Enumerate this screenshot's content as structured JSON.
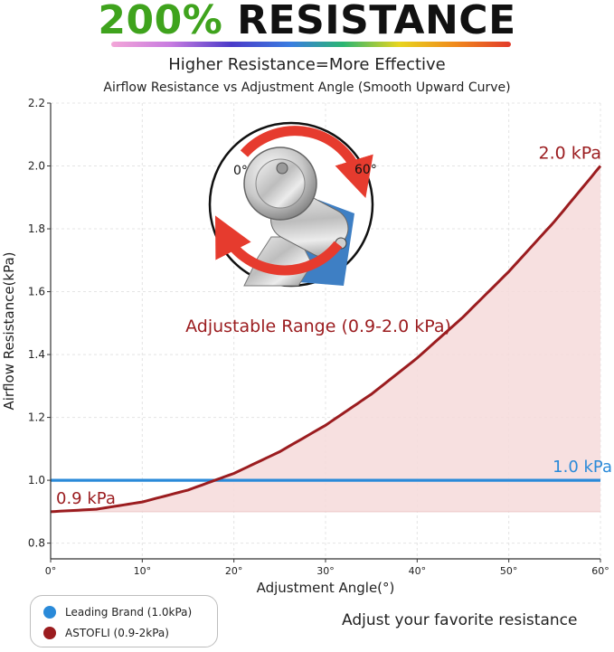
{
  "banner": {
    "percent": "200%",
    "word": "RESISTANCE"
  },
  "subtitle": "Higher Resistance=More Effective",
  "chart_title": "Airflow Resistance vs Adjustment Angle (Smooth Upward Curve)",
  "tagline": "Adjust your favorite resistance",
  "knob": {
    "label_min": "0°",
    "label_max": "60°"
  },
  "colors": {
    "red": "#9b1c1f",
    "blue": "#2a8ad9",
    "fill": "#f6dada",
    "green": "#3fa31d"
  },
  "chart_data": {
    "type": "line",
    "title": "Airflow Resistance vs Adjustment Angle (Smooth Upward Curve)",
    "xlabel": "Adjustment Angle(°)",
    "ylabel": "Airflow Resistance(kPa)",
    "xlim": [
      0,
      60
    ],
    "ylim": [
      0.75,
      2.2
    ],
    "xticks": [
      0,
      10,
      20,
      30,
      40,
      50,
      60
    ],
    "xtick_labels": [
      "0°",
      "10°",
      "20°",
      "30°",
      "40°",
      "50°",
      "60°"
    ],
    "yticks": [
      0.8,
      1.0,
      1.2,
      1.4,
      1.6,
      1.8,
      2.0,
      2.2
    ],
    "ytick_labels": [
      "0.8",
      "1.0",
      "1.2",
      "1.4",
      "1.6",
      "1.8",
      "2.0",
      "2.2"
    ],
    "grid": true,
    "legend_position": "bottom-left",
    "series": [
      {
        "name": "Leading Brand (1.0kPa)",
        "x": [
          0,
          60
        ],
        "y": [
          1.0,
          1.0
        ],
        "color": "#2a8ad9"
      },
      {
        "name": "ASTOFLI (0.9-2kPa)",
        "x": [
          0,
          5,
          10,
          15,
          20,
          25,
          30,
          35,
          40,
          45,
          50,
          55,
          60
        ],
        "y": [
          0.9,
          0.908,
          0.931,
          0.969,
          1.022,
          1.091,
          1.175,
          1.274,
          1.389,
          1.519,
          1.664,
          1.824,
          2.0
        ],
        "color": "#9b1c1f"
      }
    ],
    "annotations": [
      {
        "text": "2.0 kPa",
        "x": 60,
        "y": 2.0
      },
      {
        "text": "1.0 kPa",
        "x": 60,
        "y": 1.0
      },
      {
        "text": "0.9 kPa",
        "x": 0,
        "y": 0.9
      },
      {
        "text": "Adjustable Range (0.9-2.0 kPa)",
        "x": 28,
        "y": 1.5
      }
    ]
  }
}
